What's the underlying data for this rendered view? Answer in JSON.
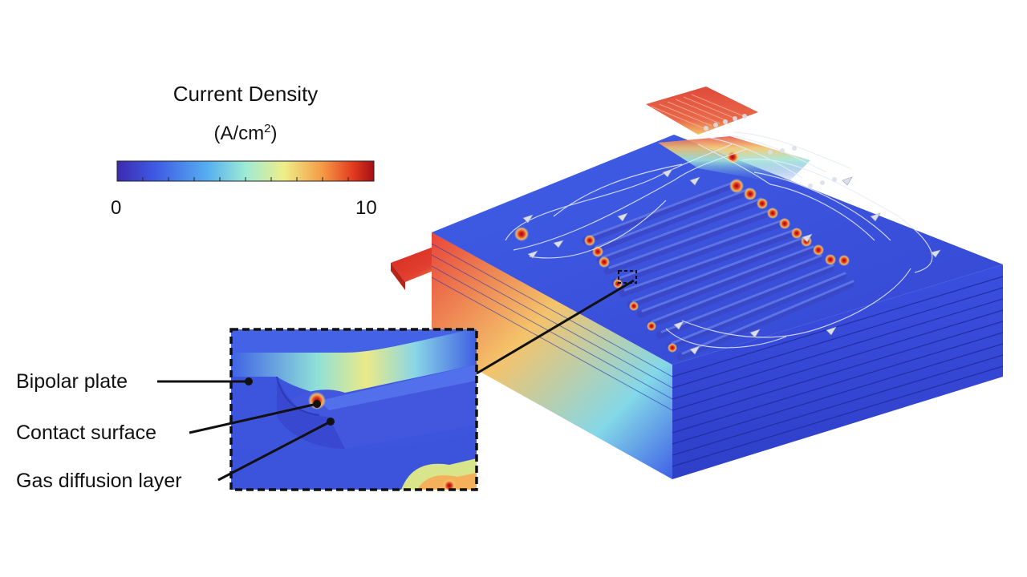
{
  "legend": {
    "title": "Current Density",
    "unit_main": "(A/cm",
    "unit_sup": "2",
    "unit_close": ")",
    "min_label": "0",
    "max_label": "10",
    "colormap": [
      "#3b2bb0",
      "#3f63e6",
      "#58b6ef",
      "#a8ecd2",
      "#f3ec86",
      "#f5a34a",
      "#e23a1f",
      "#a50f15"
    ]
  },
  "callouts": [
    {
      "label": "Bipolar plate"
    },
    {
      "label": "Contact surface"
    },
    {
      "label": "Gas diffusion layer"
    }
  ]
}
